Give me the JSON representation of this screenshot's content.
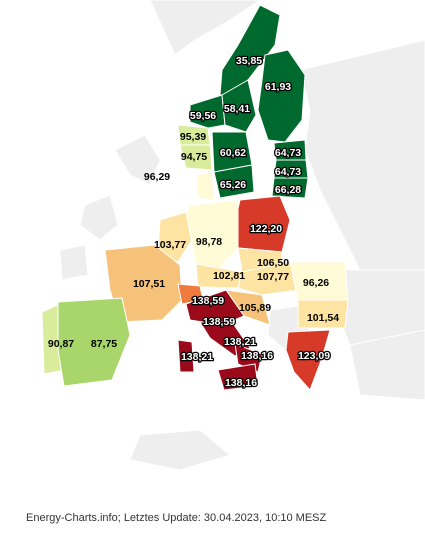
{
  "footer": {
    "source": "Energy-Charts.info; Letztes Update: 30.04.2023, 10:10 MESZ"
  },
  "colors": {
    "background_land": "#eeeeee",
    "border": "#ffffff",
    "scale_low": "#006a2e",
    "scale_lowmid": "#a8d66a",
    "scale_mid": "#fff7c2",
    "scale_midhigh": "#f6c27a",
    "scale_high": "#d83a2a",
    "scale_max": "#9a0a1a"
  },
  "regions": [
    {
      "id": "NO2",
      "value": "35,85",
      "color": "#006a2e"
    },
    {
      "id": "FI",
      "value": "61,93",
      "color": "#006a2e"
    },
    {
      "id": "NO1",
      "value": "59,56",
      "color": "#006a2e"
    },
    {
      "id": "SE2",
      "value": "58,41",
      "color": "#006a2e"
    },
    {
      "id": "NO5",
      "value": "95,39",
      "color": "#d9ec9b"
    },
    {
      "id": "NO3",
      "value": "94,75",
      "color": "#d9ec9b"
    },
    {
      "id": "SE3",
      "value": "60,62",
      "color": "#006a2e"
    },
    {
      "id": "EE",
      "value": "64,73",
      "color": "#006a2e"
    },
    {
      "id": "LV",
      "value": "64,73",
      "color": "#006a2e"
    },
    {
      "id": "LT",
      "value": "66,28",
      "color": "#006a2e"
    },
    {
      "id": "SE4",
      "value": "65,26",
      "color": "#006a2e"
    },
    {
      "id": "DK",
      "value": "96,29",
      "color": "#fffbd6"
    },
    {
      "id": "PL",
      "value": "122,20",
      "color": "#d83a2a"
    },
    {
      "id": "NL",
      "value": "103,77",
      "color": "#fde4a3"
    },
    {
      "id": "DE",
      "value": "98,78",
      "color": "#fffbd6"
    },
    {
      "id": "CZ",
      "value": "106,50",
      "color": "#fde4a3"
    },
    {
      "id": "FR",
      "value": "107,51",
      "color": "#f6c27a"
    },
    {
      "id": "AT",
      "value": "102,81",
      "color": "#fde4a3"
    },
    {
      "id": "SK_HU",
      "value": "107,77",
      "color": "#fde4a3"
    },
    {
      "id": "RO",
      "value": "96,26",
      "color": "#fffbd6"
    },
    {
      "id": "CH",
      "value": "138,59",
      "color": "#ef7a3e"
    },
    {
      "id": "SI_HR",
      "value": "105,89",
      "color": "#f6c27a"
    },
    {
      "id": "IT_N",
      "value": "138,59",
      "color": "#9a0a1a"
    },
    {
      "id": "BG",
      "value": "101,54",
      "color": "#fde4a3"
    },
    {
      "id": "IT_C",
      "value": "138,21",
      "color": "#9a0a1a"
    },
    {
      "id": "PT",
      "value": "90,87",
      "color": "#d9ec9b"
    },
    {
      "id": "ES",
      "value": "87,75",
      "color": "#a8d66a"
    },
    {
      "id": "SAR",
      "value": "138,21",
      "color": "#9a0a1a"
    },
    {
      "id": "IT_S",
      "value": "138,16",
      "color": "#9a0a1a"
    },
    {
      "id": "GR",
      "value": "123,09",
      "color": "#d83a2a"
    },
    {
      "id": "SIC",
      "value": "138,16",
      "color": "#9a0a1a"
    }
  ]
}
